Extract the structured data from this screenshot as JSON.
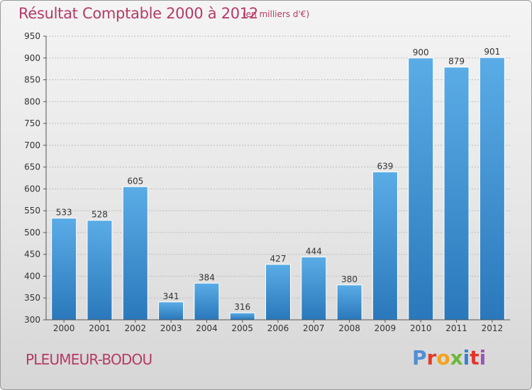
{
  "header": {
    "title": "Résultat Comptable 2000 à 2012",
    "subtitle": "(en milliers d'€)"
  },
  "footer": {
    "commune": "PLEUMEUR-BODOU",
    "logo": "Proxiti"
  },
  "colors": {
    "accent": "#b53a66",
    "bar_top": "#5aace6",
    "bar_bottom": "#2a78bb"
  },
  "chart_data": {
    "type": "bar",
    "title": "Résultat Comptable 2000 à 2012",
    "subtitle": "(en milliers d'€)",
    "xlabel": "",
    "ylabel": "",
    "categories": [
      "2000",
      "2001",
      "2002",
      "2003",
      "2004",
      "2005",
      "2006",
      "2007",
      "2008",
      "2009",
      "2010",
      "2011",
      "2012"
    ],
    "values": [
      533,
      528,
      605,
      341,
      384,
      316,
      427,
      444,
      380,
      639,
      900,
      879,
      901
    ],
    "ylim": [
      300,
      950
    ],
    "yticks": [
      300,
      350,
      400,
      450,
      500,
      550,
      600,
      650,
      700,
      750,
      800,
      850,
      900,
      950
    ],
    "grid": true,
    "data_labels": true
  }
}
